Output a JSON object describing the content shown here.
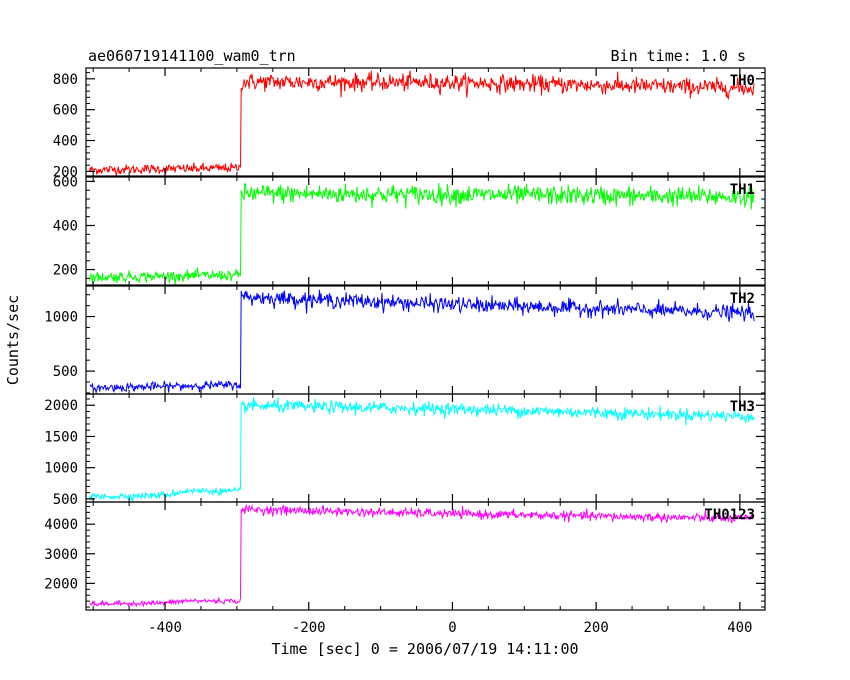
{
  "header": {
    "title": "ae060719141100_wam0_trn",
    "bin_time": "Bin time: 1.0 s"
  },
  "chart_data": {
    "type": "line",
    "title": "ae060719141100_wam0_trn",
    "subtitle": "Bin time: 1.0 s",
    "xlabel": "Time [sec] 0 = 2006/07/19 14:11:00",
    "ylabel": "Counts/sec",
    "xlim": [
      -510,
      435
    ],
    "xticks": [
      -400,
      -200,
      0,
      200,
      400
    ],
    "x_step": 1.0,
    "trigger_time": -295,
    "grid": false,
    "legend": "none",
    "panels": [
      {
        "name": "TH0",
        "color": "#ff0000",
        "ylim": [
          170,
          870
        ],
        "yticks": [
          200,
          400,
          600,
          800
        ],
        "profile": [
          [
            -505,
            210
          ],
          [
            -295,
            222
          ],
          [
            -294,
            780
          ],
          [
            0,
            775
          ],
          [
            420,
            740
          ]
        ],
        "noise": 28
      },
      {
        "name": "TH1",
        "color": "#00ff00",
        "ylim": [
          130,
          620
        ],
        "yticks": [
          200,
          400,
          600
        ],
        "profile": [
          [
            -505,
            165
          ],
          [
            -295,
            175
          ],
          [
            -294,
            545
          ],
          [
            0,
            540
          ],
          [
            420,
            530
          ]
        ],
        "noise": 22
      },
      {
        "name": "TH2",
        "color": "#0000ff",
        "ylim": [
          290,
          1280
        ],
        "yticks": [
          500,
          1000
        ],
        "profile": [
          [
            -505,
            345
          ],
          [
            -295,
            375
          ],
          [
            -294,
            1180
          ],
          [
            0,
            1110
          ],
          [
            420,
            1030
          ]
        ],
        "noise": 35
      },
      {
        "name": "TH3",
        "color": "#00ffff",
        "ylim": [
          450,
          2180
        ],
        "yticks": [
          500,
          1000,
          1500,
          2000
        ],
        "profile": [
          [
            -505,
            530
          ],
          [
            -400,
            560
          ],
          [
            -370,
            630
          ],
          [
            -295,
            620
          ],
          [
            -294,
            1990
          ],
          [
            0,
            1940
          ],
          [
            420,
            1820
          ]
        ],
        "noise": 50
      },
      {
        "name": "TH0123",
        "color": "#ff00ff",
        "ylim": [
          1100,
          4750
        ],
        "yticks": [
          2000,
          3000,
          4000
        ],
        "profile": [
          [
            -505,
            1300
          ],
          [
            -400,
            1340
          ],
          [
            -370,
            1410
          ],
          [
            -295,
            1400
          ],
          [
            -294,
            4500
          ],
          [
            0,
            4350
          ],
          [
            420,
            4180
          ]
        ],
        "noise": 75
      }
    ]
  }
}
